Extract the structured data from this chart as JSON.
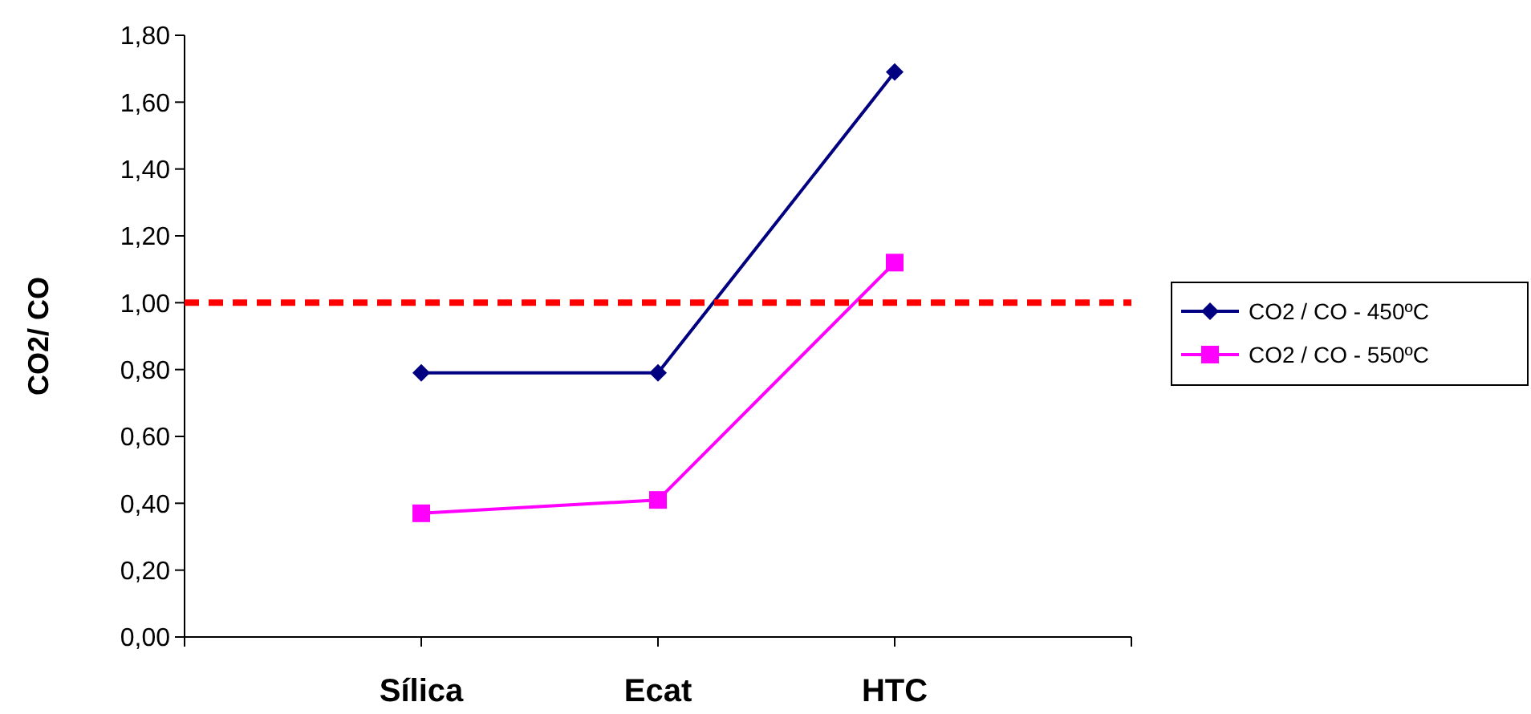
{
  "chart_data": {
    "type": "line",
    "ylabel": "CO2/ CO",
    "categories": [
      null,
      "Sílica",
      "Ecat",
      "HTC",
      null
    ],
    "series": [
      {
        "name": "CO2 / CO - 450ºC",
        "color": "#000080",
        "marker": "diamond",
        "values": [
          null,
          0.79,
          0.79,
          1.69,
          null
        ]
      },
      {
        "name": "CO2 / CO - 550ºC",
        "color": "#ff00ff",
        "marker": "square",
        "values": [
          null,
          0.37,
          0.41,
          1.12,
          null
        ]
      }
    ],
    "ylim": [
      0,
      1.8
    ],
    "yticks": [
      {
        "value": 0,
        "label": "0,00"
      },
      {
        "value": 0.2,
        "label": "0,20"
      },
      {
        "value": 0.4,
        "label": "0,40"
      },
      {
        "value": 0.6,
        "label": "0,60"
      },
      {
        "value": 0.8,
        "label": "0,80"
      },
      {
        "value": 1,
        "label": "1,00"
      },
      {
        "value": 1.2,
        "label": "1,20"
      },
      {
        "value": 1.4,
        "label": "1,40"
      },
      {
        "value": 1.6,
        "label": "1,60"
      },
      {
        "value": 1.8,
        "label": "1,80"
      }
    ],
    "ref_lines": [
      {
        "axis": "y",
        "value": 1.0,
        "color": "#ff0000",
        "line_style": "dashed"
      }
    ],
    "legend": "right",
    "grid": false
  }
}
